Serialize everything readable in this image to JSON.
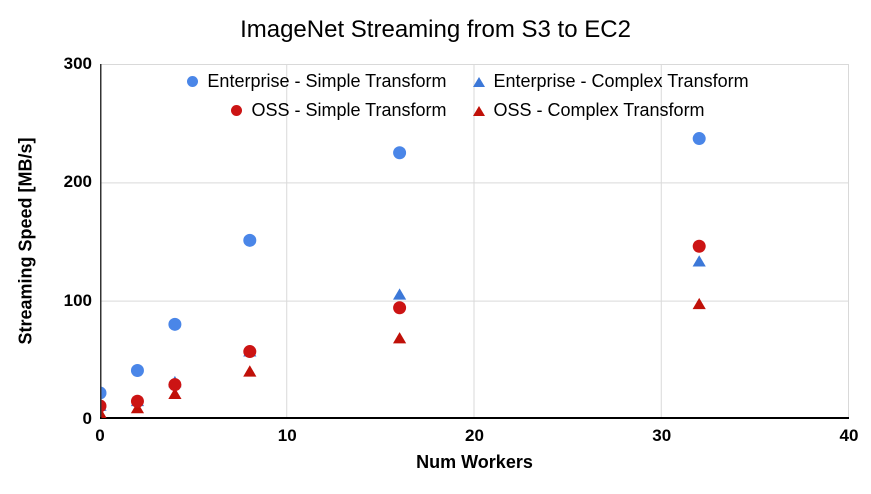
{
  "chart": {
    "title": "ImageNet Streaming from S3 to EC2",
    "x_axis_label": "Num Workers",
    "y_axis_label": "Streaming Speed [MB/s]"
  },
  "style": {
    "grid_color": "#d9d9d9",
    "y_axis_line_color": "#333333",
    "x_axis_line_color": "#000000",
    "text_color": "#000000",
    "background": "#ffffff"
  },
  "chart_data": {
    "type": "scatter",
    "title": "ImageNet Streaming from S3 to EC2",
    "xlabel": "Num Workers",
    "ylabel": "Streaming Speed [MB/s]",
    "xlim": [
      0,
      40
    ],
    "ylim": [
      0,
      300
    ],
    "x_ticks": [
      0,
      10,
      20,
      30,
      40
    ],
    "y_ticks": [
      0,
      100,
      200,
      300
    ],
    "grid": true,
    "legend_position": "top-inside",
    "legend_rows": [
      [
        0,
        1
      ],
      [
        2,
        3
      ]
    ],
    "draw_order": [
      0,
      1,
      3,
      2
    ],
    "series": [
      {
        "name": "Enterprise - Simple Transform",
        "marker": "circle",
        "color": "#4a86e8",
        "x": [
          0,
          2,
          4,
          8,
          16,
          32
        ],
        "y": [
          22,
          41,
          80,
          151,
          225,
          237
        ]
      },
      {
        "name": "Enterprise - Complex Transform",
        "marker": "triangle",
        "color": "#3c78d8",
        "x": [
          0,
          2,
          4,
          8,
          16,
          32
        ],
        "y": [
          11,
          15,
          31,
          57,
          105,
          133
        ]
      },
      {
        "name": "OSS - Simple Transform",
        "marker": "circle",
        "color": "#cc1414",
        "x": [
          0,
          2,
          4,
          8,
          16,
          32
        ],
        "y": [
          11,
          15,
          29,
          57,
          94,
          146
        ]
      },
      {
        "name": "OSS - Complex Transform",
        "marker": "triangle",
        "color": "#c01008",
        "x": [
          0,
          2,
          4,
          8,
          16,
          32
        ],
        "y": [
          5,
          9,
          21,
          40,
          68,
          97
        ]
      }
    ]
  }
}
